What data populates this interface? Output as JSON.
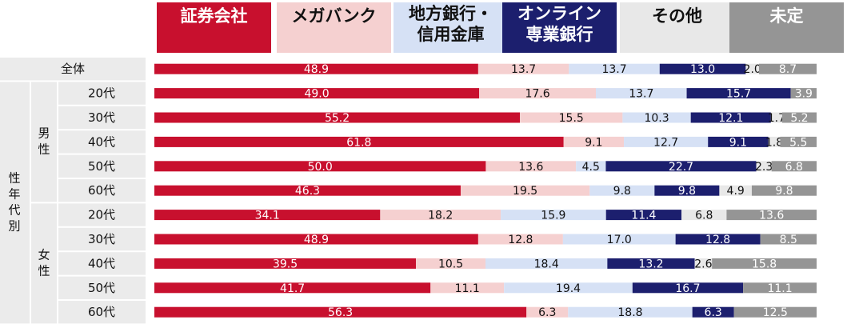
{
  "chart_data": {
    "type": "bar",
    "orientation": "horizontal",
    "stacked": "percent",
    "legend_position": "top",
    "grid": false,
    "legend": [
      {
        "label": "証券会社",
        "color": "#c8102e",
        "text_color": "#ffffff"
      },
      {
        "label": "メガバンク",
        "color": "#f5d0d0",
        "text_color": "#111111"
      },
      {
        "label": "地方銀行・\n信用金庫",
        "color": "#d6e1f5",
        "text_color": "#111111"
      },
      {
        "label": "オンライン\n専業銀行",
        "color": "#1c1f6e",
        "text_color": "#ffffff"
      },
      {
        "label": "その他",
        "color": "#e8e8e8",
        "text_color": "#111111"
      },
      {
        "label": "未定",
        "color": "#959595",
        "text_color": "#ffffff"
      }
    ],
    "groups": [
      {
        "label": "性年代別",
        "sub": [
          {
            "label": "男性"
          },
          {
            "label": "女性"
          }
        ]
      }
    ],
    "rows": [
      {
        "label": "全体",
        "values": [
          48.9,
          13.7,
          13.7,
          13.0,
          2.0,
          8.7
        ]
      },
      {
        "label": "20代",
        "values": [
          49.0,
          17.6,
          13.7,
          15.7,
          0,
          3.9
        ]
      },
      {
        "label": "30代",
        "values": [
          55.2,
          15.5,
          10.3,
          12.1,
          1.7,
          5.2
        ]
      },
      {
        "label": "40代",
        "values": [
          61.8,
          9.1,
          12.7,
          9.1,
          1.8,
          5.5
        ]
      },
      {
        "label": "50代",
        "values": [
          50.0,
          13.6,
          4.5,
          22.7,
          2.3,
          6.8
        ]
      },
      {
        "label": "60代",
        "values": [
          46.3,
          19.5,
          9.8,
          9.8,
          4.9,
          9.8
        ]
      },
      {
        "label": "20代",
        "values": [
          34.1,
          18.2,
          15.9,
          11.4,
          6.8,
          13.6
        ]
      },
      {
        "label": "30代",
        "values": [
          48.9,
          12.8,
          17.0,
          12.8,
          0,
          8.5
        ]
      },
      {
        "label": "40代",
        "values": [
          39.5,
          10.5,
          18.4,
          13.2,
          2.6,
          15.8
        ]
      },
      {
        "label": "50代",
        "values": [
          41.7,
          11.1,
          19.4,
          16.7,
          0,
          11.1
        ]
      },
      {
        "label": "60代",
        "values": [
          56.3,
          6.3,
          18.8,
          6.3,
          0,
          12.5
        ]
      }
    ]
  }
}
